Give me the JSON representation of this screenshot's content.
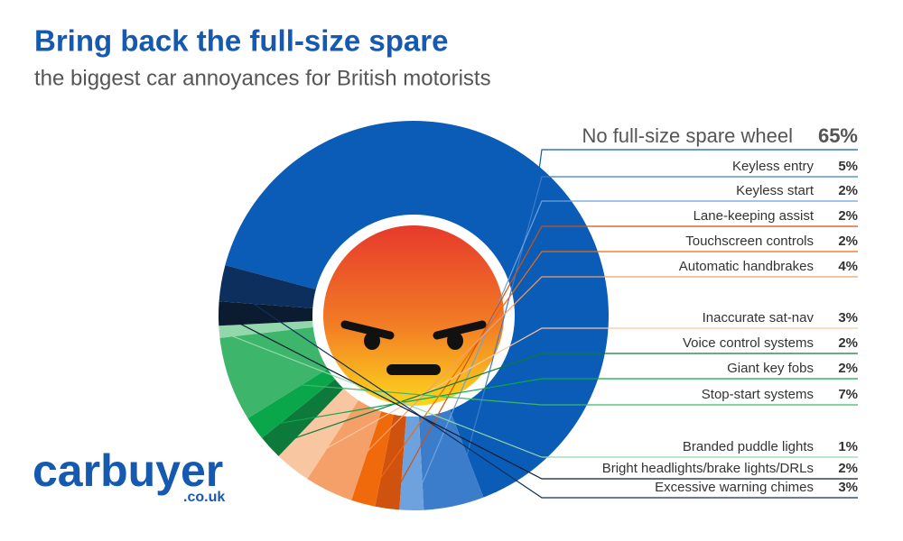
{
  "chart_data": {
    "type": "donut",
    "title": "Bring back the full-size spare",
    "subtitle": "the biggest car annoyances for British motorists",
    "brand": "carbuyer",
    "brand_suffix": ".co.uk",
    "categories": [
      "No full-size spare wheel",
      "Keyless entry",
      "Keyless start",
      "Lane-keeping assist",
      "Touchscreen controls",
      "Automatic handbrakes",
      "Inaccurate sat-nav",
      "Voice control systems",
      "Giant key fobs",
      "Stop-start systems",
      "Branded puddle lights",
      "Bright headlights/brake lights/DRLs",
      "Excessive warning chimes"
    ],
    "values": [
      65,
      5,
      2,
      2,
      2,
      4,
      3,
      2,
      2,
      7,
      1,
      2,
      3
    ],
    "value_labels": [
      "65%",
      "5%",
      "2%",
      "2%",
      "2%",
      "4%",
      "3%",
      "2%",
      "2%",
      "7%",
      "1%",
      "2%",
      "3%"
    ],
    "colors": [
      "#0b5cb6",
      "#3b7dca",
      "#6ea2de",
      "#cf520f",
      "#f06a0b",
      "#f4a068",
      "#f9c6a2",
      "#0d7a3b",
      "#0aa64a",
      "#3db66c",
      "#93d8ab",
      "#0c1c30",
      "#0d2f5e"
    ]
  }
}
